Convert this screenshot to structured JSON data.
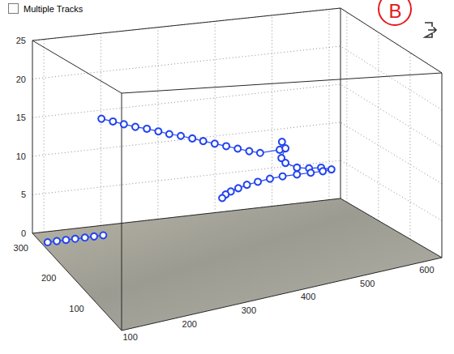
{
  "chart_data": {
    "type": "line3d",
    "xlim": [
      80,
      620
    ],
    "ylim": [
      0,
      320
    ],
    "zlim": [
      0,
      25
    ],
    "xticks": [
      100,
      200,
      300,
      400,
      500,
      600
    ],
    "yticks": [
      100,
      200,
      300
    ],
    "zticks": [
      0,
      5,
      10,
      15,
      20,
      25
    ],
    "grid": true,
    "series": [
      {
        "color": "#2244ee",
        "marker": "circle",
        "line_style": "solid",
        "x": [
          169,
          189,
          208,
          228,
          248,
          268,
          287,
          307,
          327,
          346,
          366,
          386,
          406,
          426,
          445,
          479,
          483,
          489,
          482,
          489,
          509,
          530,
          551,
          569,
          554,
          533,
          509,
          484,
          462,
          441,
          422,
          407,
          394,
          385,
          379
        ],
        "y": [
          256,
          256,
          256,
          256,
          256,
          256,
          256,
          256,
          256,
          256,
          256,
          256,
          256,
          256,
          256,
          256,
          256,
          256,
          256,
          256,
          256,
          256,
          256,
          256,
          256,
          256,
          256,
          256,
          256,
          256,
          256,
          256,
          256,
          256,
          256
        ],
        "z": [
          15.9,
          15.4,
          14.9,
          14.4,
          14.0,
          13.5,
          13.0,
          12.6,
          12.1,
          11.6,
          11.1,
          10.6,
          10.1,
          9.6,
          9.2,
          9.3,
          10.3,
          9.4,
          8.2,
          7.5,
          6.7,
          6.4,
          6.3,
          5.9,
          5.8,
          5.8,
          5.8,
          5.8,
          5.7,
          5.5,
          5.3,
          5.0,
          4.7,
          4.4,
          4.0
        ]
      },
      {
        "color": "#2244ee",
        "marker": "circle",
        "line_style": "solid",
        "x": [
          91,
          107,
          123,
          139,
          156,
          172,
          188
        ],
        "y": [
          288,
          288,
          288,
          288,
          288,
          288,
          288
        ],
        "z": [
          0,
          0,
          0,
          0,
          0,
          0,
          0
        ]
      }
    ]
  },
  "controls": {
    "checkbox_label": "Multiple Tracks",
    "checkbox_checked": false,
    "badge": "B"
  }
}
